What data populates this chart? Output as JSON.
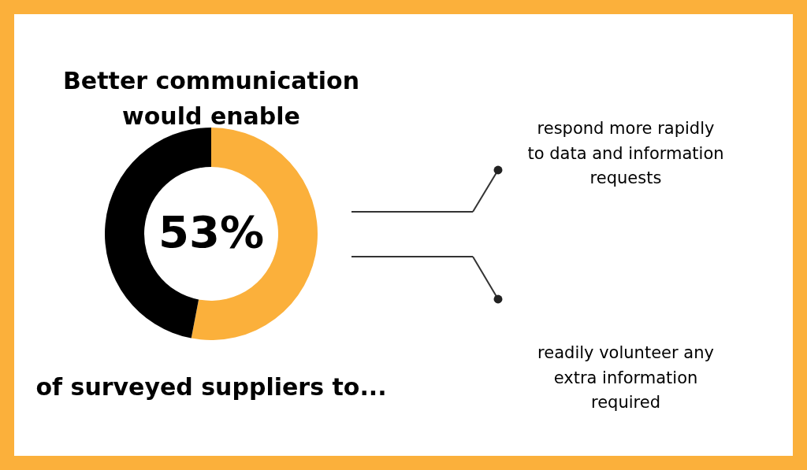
{
  "chart_data": {
    "type": "donut",
    "title": "Better communication\nwould enable",
    "categories": [
      null,
      null
    ],
    "values": [
      53,
      47
    ],
    "colors": [
      "#fbb03b",
      "#000000"
    ],
    "value_labels": [
      "53%",
      null
    ],
    "annotations": [
      "of surveyed suppliers to...",
      "respond more rapidly\nto data and information\nrequests",
      "readily volunteer any\nextra information\nrequired"
    ]
  }
}
